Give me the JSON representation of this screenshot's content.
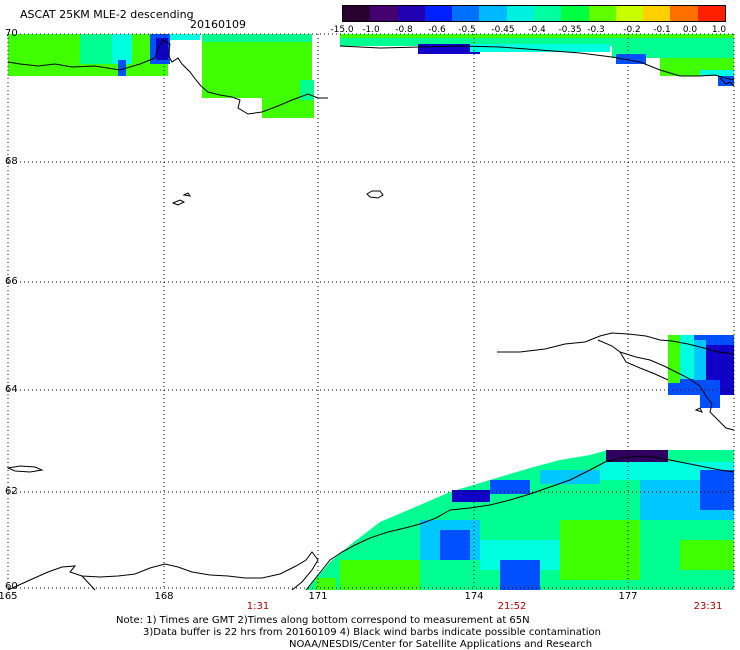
{
  "header": {
    "title": "ASCAT 25KM MLE-2 descending",
    "date": "20160109"
  },
  "colorbar": {
    "tick_labels": [
      "-15.0",
      "-1.0",
      "-0.8",
      "-0.6",
      "-0.5",
      "-0.45",
      "-0.4",
      "-0.35",
      "-0.3",
      "-0.2",
      "-0.1",
      "0.0",
      "1.0"
    ],
    "colors": [
      "#2a0030",
      "#450070",
      "#2000b0",
      "#0020ff",
      "#0070ff",
      "#00b8ff",
      "#00f0e0",
      "#00ffa0",
      "#00ff40",
      "#60ff00",
      "#c8ff00",
      "#ffd000",
      "#ff7000",
      "#ff2000"
    ]
  },
  "map": {
    "lat_labels": [
      "70",
      "68",
      "66",
      "64",
      "62",
      "60"
    ],
    "lon_labels": [
      "165",
      "168",
      "171",
      "174",
      "177"
    ],
    "time_labels": [
      "1:31",
      "21:52",
      "23:31"
    ],
    "colors": {
      "grid": "#000000",
      "coast": "#000000",
      "green": "#40ff00",
      "teal": "#00ff90",
      "cyan": "#00ffe0",
      "sky": "#00c8ff",
      "blue": "#0050ff",
      "darkblue": "#1000c8",
      "navy": "#300060",
      "time_text": "#b00000"
    }
  },
  "footer": {
    "note1": "Note: 1) Times are GMT 2)Times along bottom correspond to measurement at 65N",
    "note2": "3)Data buffer is 22 hrs from 20160109 4) Black wind barbs indicate possible contamination",
    "note3": "NOAA/NESDIS/Center for Satellite Applications and Research"
  }
}
